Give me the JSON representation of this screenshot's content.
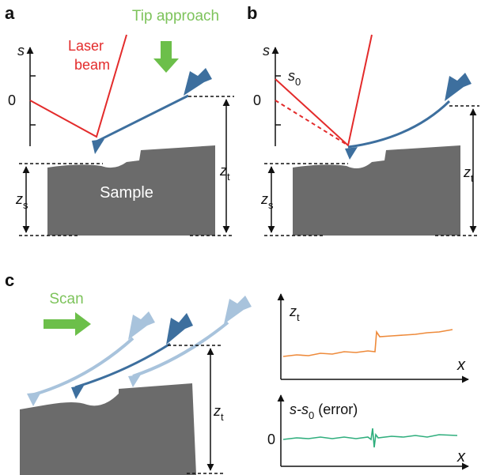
{
  "panel_a": {
    "label": "a",
    "annotation": "Tip approach",
    "axis_symbol": "s",
    "laser_label": [
      "Laser",
      "beam"
    ],
    "zero": "0",
    "tip_height": {
      "symbol": "z",
      "subscript": "t"
    },
    "sample_height": {
      "symbol": "z",
      "subscript": "s"
    },
    "sample": "Sample"
  },
  "panel_b": {
    "label": "b",
    "axis_symbol": "s",
    "offset": {
      "symbol": "s",
      "subscript": "0"
    },
    "zero": "0",
    "tip_height": {
      "symbol": "z",
      "subscript": "t"
    },
    "sample_height": {
      "symbol": "z",
      "subscript": "s"
    }
  },
  "panel_c": {
    "label": "c",
    "annotation": "Scan",
    "tip_height": {
      "symbol": "z",
      "subscript": "t"
    },
    "top_plot": {
      "y_label": {
        "symbol": "z",
        "subscript": "t"
      },
      "x_label": "x"
    },
    "bottom_plot": {
      "y_label": {
        "prefix": "s-s",
        "subscript": "0",
        "suffix": " (error)"
      },
      "zero": "0",
      "x_label": "x"
    }
  }
}
